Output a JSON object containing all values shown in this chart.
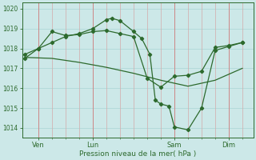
{
  "title": "Pression niveau de la mer( hPa )",
  "bg_color": "#cce8e8",
  "line_color": "#2d6a2d",
  "grid_h_color": "#aad4d4",
  "grid_v_minor_color": "#d4aaaa",
  "grid_v_major_color": "#cc8888",
  "ylim": [
    1013.5,
    1020.3
  ],
  "xlim": [
    -0.1,
    8.4
  ],
  "xtick_positions": [
    0.5,
    2.5,
    5.5,
    7.5
  ],
  "xtick_labels": [
    "Ven",
    "Lun",
    "Sam",
    "Dim"
  ],
  "ytick_positions": [
    1014,
    1015,
    1016,
    1017,
    1018,
    1019,
    1020
  ],
  "ytick_labels": [
    "1014",
    "1015",
    "1016",
    "1017",
    "1018",
    "1019",
    "1020"
  ],
  "minor_vgrid": [
    0.5,
    1.0,
    1.5,
    2.0,
    2.5,
    3.0,
    3.5,
    4.0,
    4.5,
    5.0,
    5.5,
    6.0,
    6.5,
    7.0,
    7.5,
    8.0
  ],
  "major_vgrid": [
    0.5,
    2.5,
    5.5,
    7.5
  ],
  "line1_x": [
    0.0,
    0.5,
    1.0,
    1.5,
    2.0,
    2.5,
    3.0,
    3.5,
    4.0,
    4.5,
    5.0,
    5.5,
    6.0,
    6.5,
    7.0,
    7.5,
    8.0
  ],
  "line1_y": [
    1017.7,
    1018.0,
    1018.85,
    1018.65,
    1018.7,
    1018.85,
    1018.9,
    1018.75,
    1018.6,
    1016.5,
    1016.05,
    1016.6,
    1016.65,
    1016.85,
    1018.05,
    1018.15,
    1018.3
  ],
  "line2_x": [
    0.0,
    0.5,
    1.0,
    1.5,
    2.0,
    2.5,
    3.0,
    3.2,
    3.5,
    4.0,
    4.3,
    4.6,
    4.8,
    5.0,
    5.3,
    5.5,
    6.0,
    6.5,
    7.0,
    7.5,
    8.0
  ],
  "line2_y": [
    1017.5,
    1018.0,
    1018.3,
    1018.6,
    1018.75,
    1019.0,
    1019.45,
    1019.52,
    1019.4,
    1018.85,
    1018.5,
    1017.7,
    1015.4,
    1015.2,
    1015.1,
    1014.05,
    1013.9,
    1015.0,
    1017.9,
    1018.1,
    1018.3
  ],
  "line3_x": [
    0.0,
    1.0,
    2.0,
    3.0,
    4.0,
    5.0,
    6.0,
    7.0,
    8.0
  ],
  "line3_y": [
    1017.55,
    1017.5,
    1017.3,
    1017.05,
    1016.75,
    1016.4,
    1016.1,
    1016.4,
    1017.0
  ]
}
